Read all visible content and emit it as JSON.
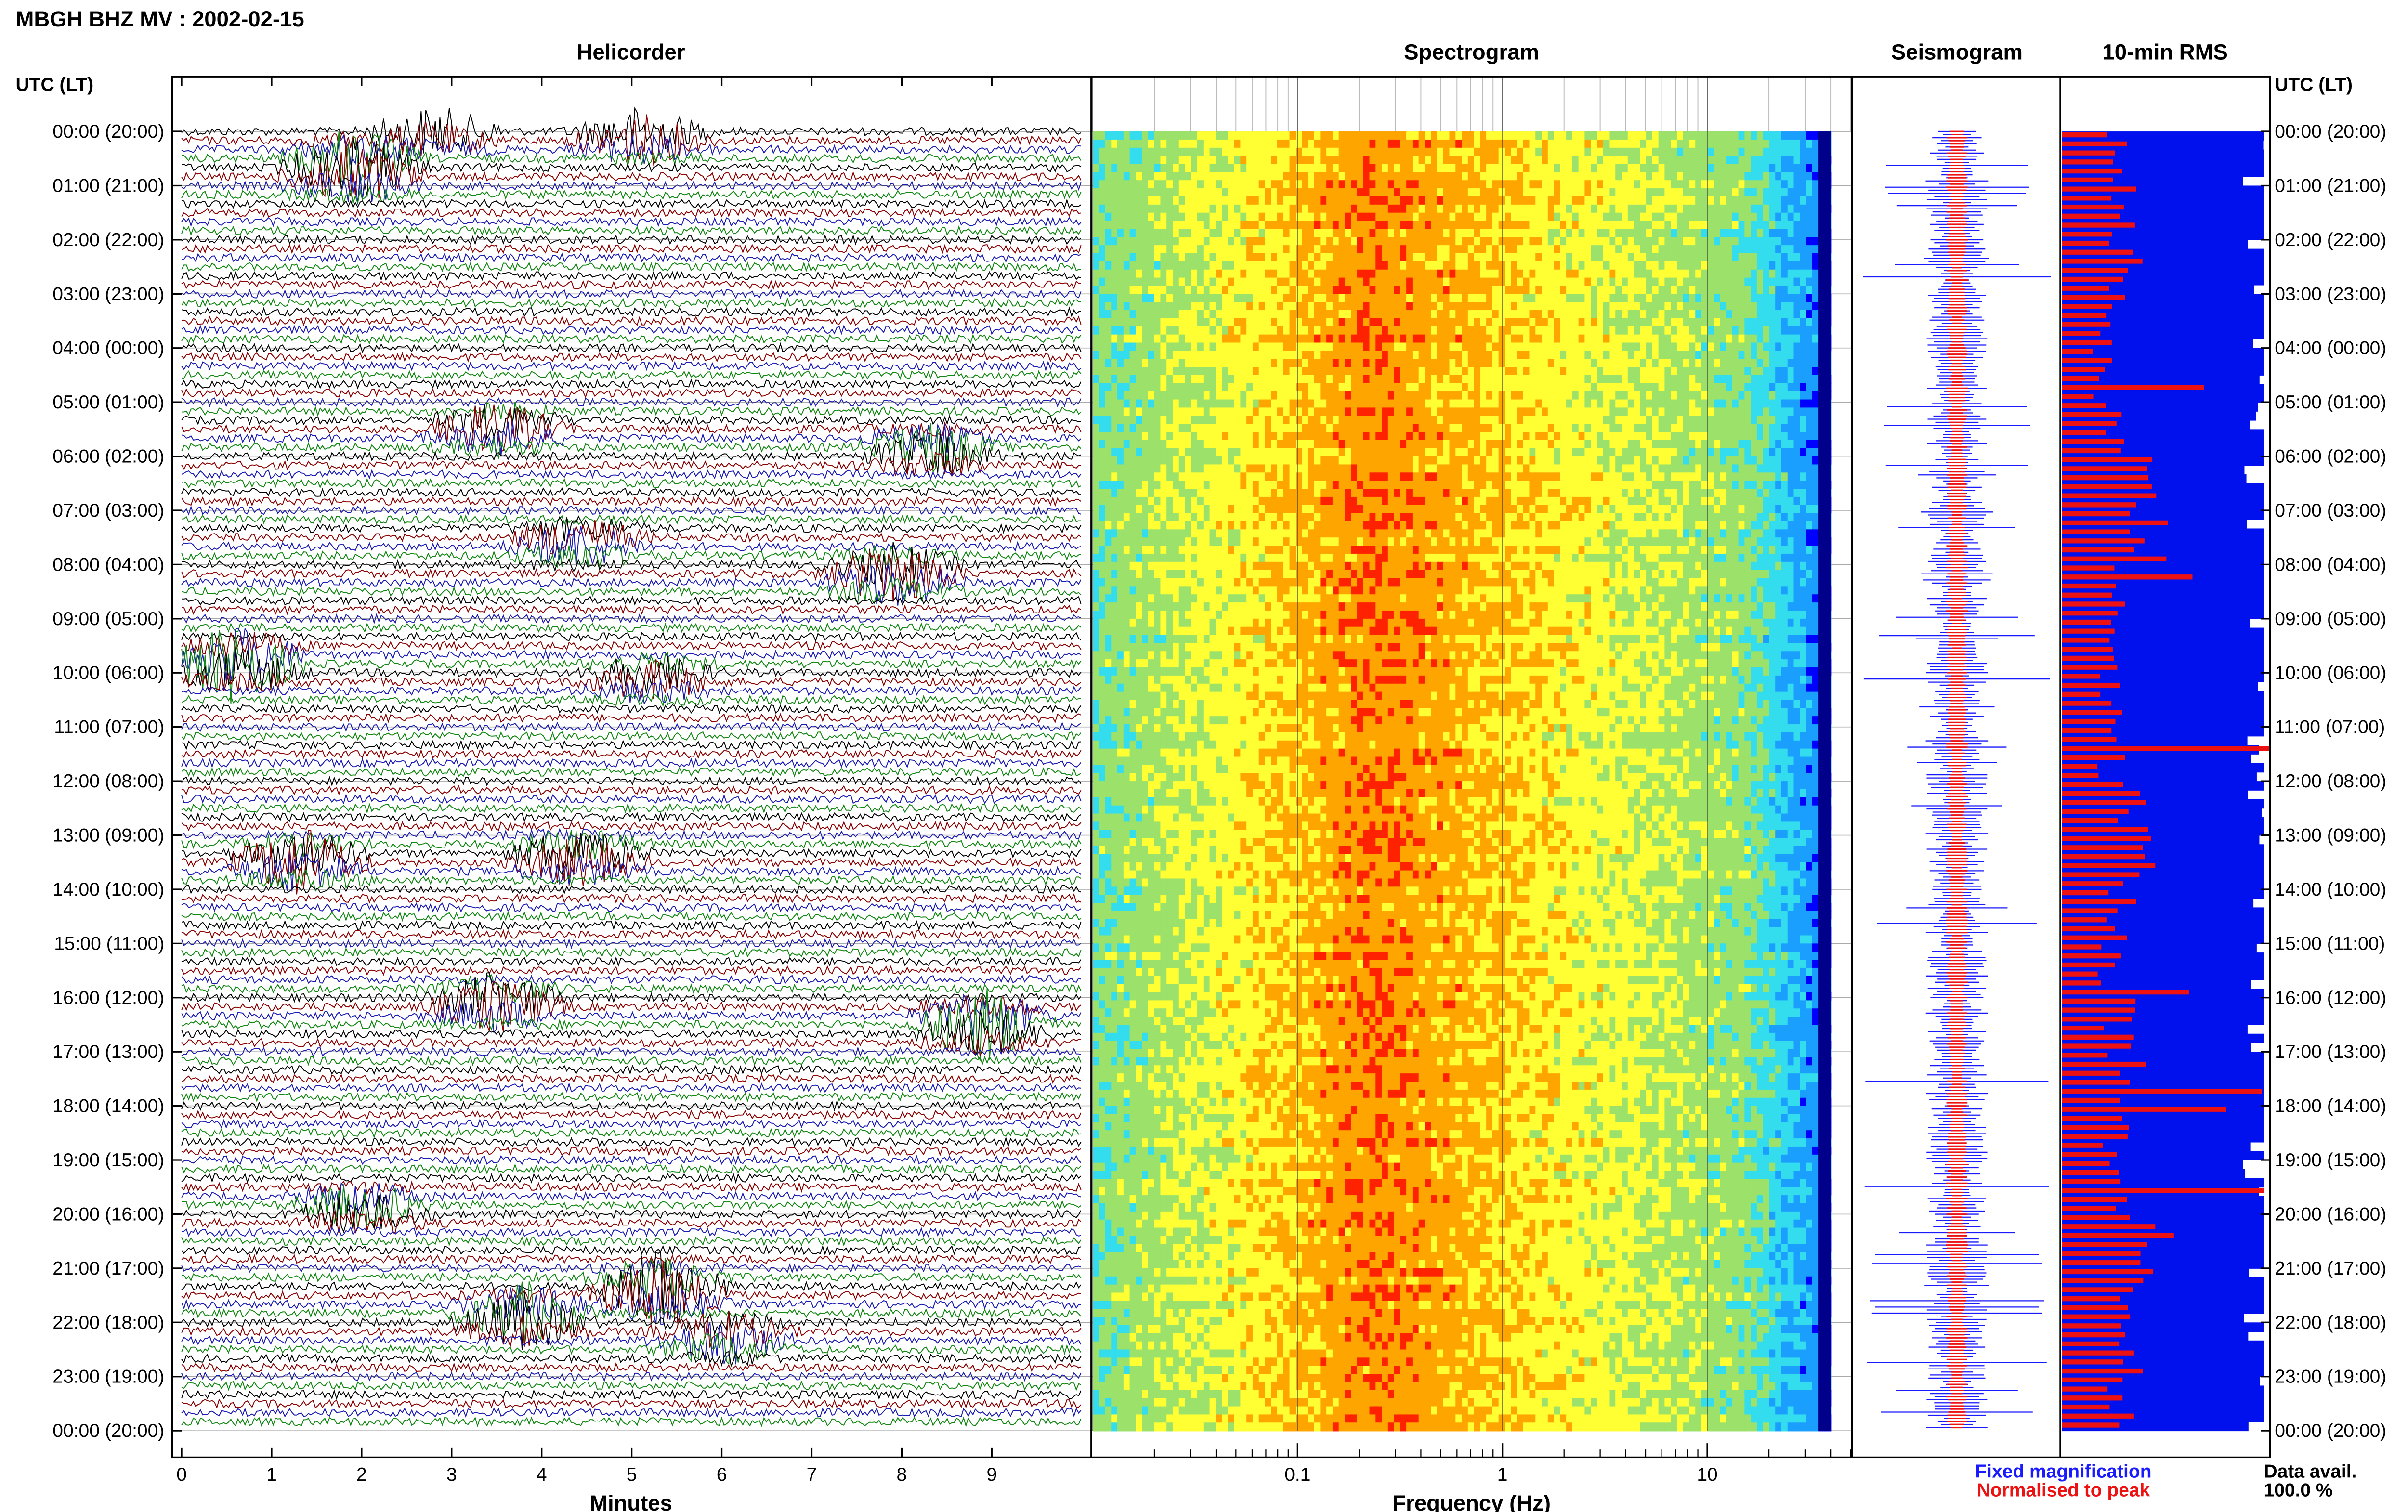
{
  "header": {
    "title": "MBGH BHZ MV : 2002-02-15"
  },
  "panels": {
    "helicorder": "Helicorder",
    "spectrogram": "Spectrogram",
    "seismogram": "Seismogram",
    "rms": "10-min RMS"
  },
  "axis": {
    "left_label": "UTC (LT)",
    "right_label": "UTC (LT)",
    "minutes_label": "Minutes",
    "frequency_label": "Frequency (Hz)"
  },
  "legend": {
    "fixed": "Fixed magnification",
    "normalised": "Normalised to peak",
    "fixed_color": "#1a1aff",
    "normalised_color": "#ee1111"
  },
  "data_avail": {
    "label": "Data avail.",
    "value": "100.0 %"
  },
  "chart_data": [
    {
      "type": "line",
      "title": "Helicorder",
      "xlabel": "Minutes",
      "ylabel": "UTC (LT)",
      "xlim": [
        0,
        10
      ],
      "x_ticks": [
        "0",
        "1",
        "2",
        "3",
        "4",
        "5",
        "6",
        "7",
        "8",
        "9"
      ],
      "y_ticks": [
        "00:00 (20:00)",
        "01:00 (21:00)",
        "02:00 (22:00)",
        "03:00 (23:00)",
        "04:00 (00:00)",
        "05:00 (01:00)",
        "06:00 (02:00)",
        "07:00 (03:00)",
        "08:00 (04:00)",
        "09:00 (05:00)",
        "10:00 (06:00)",
        "11:00 (07:00)",
        "12:00 (08:00)",
        "13:00 (09:00)",
        "14:00 (10:00)",
        "15:00 (11:00)",
        "16:00 (12:00)",
        "17:00 (13:00)",
        "18:00 (14:00)",
        "19:00 (15:00)",
        "20:00 (16:00)",
        "21:00 (17:00)",
        "22:00 (18:00)",
        "23:00 (19:00)",
        "00:00 (20:00)"
      ],
      "trace_colors": [
        "#000000",
        "#8b0000",
        "#1a1ab4",
        "#118811"
      ],
      "traces_per_hour": 6,
      "bursts": [
        {
          "hour": 0.0,
          "minute": 2.8,
          "amp": 1.1
        },
        {
          "hour": 0.1,
          "minute": 5.1,
          "amp": 1.3
        },
        {
          "hour": 0.5,
          "minute": 1.9,
          "amp": 0.9
        },
        {
          "hour": 0.8,
          "minute": 1.9,
          "amp": 1.4
        },
        {
          "hour": 5.5,
          "minute": 3.5,
          "amp": 1.2
        },
        {
          "hour": 5.9,
          "minute": 8.3,
          "amp": 1.3
        },
        {
          "hour": 7.6,
          "minute": 4.4,
          "amp": 1.2
        },
        {
          "hour": 8.2,
          "minute": 7.9,
          "amp": 1.6
        },
        {
          "hour": 9.8,
          "minute": 0.6,
          "amp": 1.9
        },
        {
          "hour": 10.1,
          "minute": 5.2,
          "amp": 1.0
        },
        {
          "hour": 13.4,
          "minute": 4.4,
          "amp": 1.4
        },
        {
          "hour": 13.5,
          "minute": 1.3,
          "amp": 1.6
        },
        {
          "hour": 16.1,
          "minute": 3.5,
          "amp": 1.4
        },
        {
          "hour": 16.5,
          "minute": 8.9,
          "amp": 1.7
        },
        {
          "hour": 19.9,
          "minute": 2.0,
          "amp": 1.2
        },
        {
          "hour": 21.4,
          "minute": 5.3,
          "amp": 1.9
        },
        {
          "hour": 21.9,
          "minute": 3.8,
          "amp": 1.6
        },
        {
          "hour": 22.3,
          "minute": 6.0,
          "amp": 1.2
        }
      ]
    },
    {
      "type": "heatmap",
      "title": "Spectrogram",
      "xlabel": "Frequency (Hz)",
      "x_scale": "log",
      "xlim": [
        0.01,
        50
      ],
      "x_ticks": [
        "0.1",
        "1",
        "10"
      ],
      "ylim_hours": [
        0,
        24
      ],
      "peak_band_hz": [
        0.18,
        0.35
      ],
      "colormap": [
        "#00008b",
        "#0000ff",
        "#1a9fff",
        "#33ddee",
        "#9be16a",
        "#ffff33",
        "#ffa500",
        "#ff2200"
      ]
    },
    {
      "type": "line",
      "title": "Seismogram",
      "series": [
        {
          "name": "Fixed magnification",
          "color": "#1a1aff"
        },
        {
          "name": "Normalised to peak",
          "color": "#ee1111"
        }
      ]
    },
    {
      "type": "bar",
      "title": "10-min RMS",
      "orientation": "horizontal",
      "bin_minutes": 10,
      "normalised_amplitude_profile": [
        0.3,
        0.28,
        0.32,
        0.25,
        0.2,
        0.27,
        0.35,
        0.45,
        0.3,
        0.22,
        0.26,
        0.24,
        0.33,
        0.38,
        0.3,
        0.22,
        0.28,
        0.31,
        0.26,
        0.29,
        0.42,
        0.34,
        0.36,
        0.27
      ],
      "fixed_magnification_coverage": 0.97,
      "data_availability_percent": 100.0
    }
  ]
}
